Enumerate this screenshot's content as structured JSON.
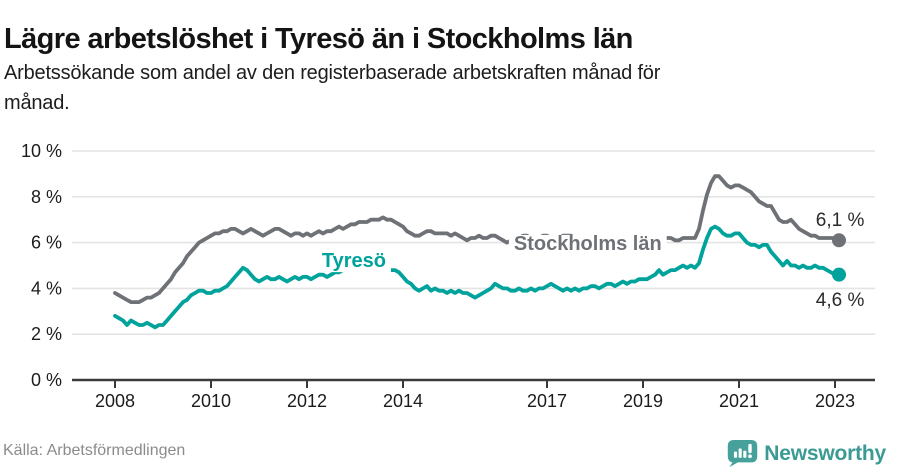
{
  "header": {
    "title": "Lägre arbetslöshet i Tyresö än i Stockholms län",
    "subtitle": "Arbetssökande som andel av den registerbaserade arbetskraften månad för månad."
  },
  "footer": {
    "source": "Källa: Arbetsförmedlingen",
    "brand": "Newsworthy",
    "brand_color": "#3b9b94",
    "brand_icon": "newsworthy-speech-bubble-bar-chart-icon",
    "brand_icon_color": "#45a19a"
  },
  "chart_data": {
    "type": "line",
    "grid": true,
    "legend_position": "inline-labels",
    "x_axis": {
      "start_year": 2008,
      "frequency": "monthly",
      "range": [
        "2008-01",
        "2023-02"
      ],
      "ticks": [
        {
          "year": 2008,
          "label": "2008"
        },
        {
          "year": 2010,
          "label": "2010"
        },
        {
          "year": 2012,
          "label": "2012"
        },
        {
          "year": 2014,
          "label": "2014"
        },
        {
          "year": 2017,
          "label": "2017"
        },
        {
          "year": 2019,
          "label": "2019"
        },
        {
          "year": 2021,
          "label": "2021"
        },
        {
          "year": 2023,
          "label": "2023"
        }
      ]
    },
    "y_axis": {
      "unit": "%",
      "min": 0,
      "max": 10,
      "ticks": [
        {
          "value": 0,
          "label": "0 %"
        },
        {
          "value": 2,
          "label": "2 %"
        },
        {
          "value": 4,
          "label": "4 %"
        },
        {
          "value": 6,
          "label": "6 %"
        },
        {
          "value": 8,
          "label": "8 %"
        },
        {
          "value": 10,
          "label": "10 %"
        }
      ]
    },
    "colors": {
      "grid": "#e4e4e4",
      "axis": "#3a3a3a",
      "tick_text": "#1c1c1c",
      "end_label_text": "#2b2b2b"
    },
    "series": [
      {
        "name": "Stockholms län",
        "color": "#6e7176",
        "inline_label": {
          "x": 2016.31,
          "y": 5.68
        },
        "end_label": {
          "text": "6,1 %",
          "x": 2022.6,
          "y": 6.72
        },
        "end_value": 6.1,
        "values": [
          3.8,
          3.7,
          3.6,
          3.5,
          3.4,
          3.4,
          3.4,
          3.5,
          3.6,
          3.6,
          3.7,
          3.8,
          4.0,
          4.2,
          4.4,
          4.7,
          4.9,
          5.1,
          5.4,
          5.6,
          5.8,
          6.0,
          6.1,
          6.2,
          6.3,
          6.4,
          6.4,
          6.5,
          6.5,
          6.6,
          6.6,
          6.5,
          6.4,
          6.5,
          6.6,
          6.5,
          6.4,
          6.3,
          6.4,
          6.5,
          6.6,
          6.6,
          6.5,
          6.4,
          6.3,
          6.4,
          6.4,
          6.3,
          6.4,
          6.3,
          6.4,
          6.5,
          6.4,
          6.5,
          6.5,
          6.6,
          6.7,
          6.6,
          6.7,
          6.8,
          6.8,
          6.9,
          6.9,
          6.9,
          7.0,
          7.0,
          7.0,
          7.1,
          7.0,
          7.0,
          6.9,
          6.8,
          6.7,
          6.5,
          6.4,
          6.3,
          6.3,
          6.4,
          6.5,
          6.5,
          6.4,
          6.4,
          6.4,
          6.4,
          6.3,
          6.4,
          6.3,
          6.2,
          6.1,
          6.2,
          6.2,
          6.3,
          6.2,
          6.2,
          6.3,
          6.3,
          6.2,
          6.1,
          6.0,
          6.1,
          6.2,
          6.2,
          6.3,
          6.3,
          6.2,
          6.2,
          6.2,
          6.3,
          6.3,
          6.2,
          6.2,
          6.2,
          6.3,
          6.3,
          6.3,
          6.2,
          6.2,
          6.2,
          6.1,
          6.1,
          6.1,
          6.0,
          6.0,
          6.0,
          6.1,
          6.1,
          6.2,
          6.1,
          6.1,
          6.0,
          6.0,
          6.1,
          6.1,
          6.1,
          6.0,
          6.1,
          6.1,
          6.2,
          6.2,
          6.2,
          6.1,
          6.1,
          6.2,
          6.2,
          6.2,
          6.2,
          6.6,
          7.4,
          8.1,
          8.6,
          8.9,
          8.9,
          8.7,
          8.5,
          8.4,
          8.5,
          8.5,
          8.4,
          8.3,
          8.2,
          8.0,
          7.8,
          7.7,
          7.6,
          7.6,
          7.3,
          7.0,
          6.9,
          6.9,
          7.0,
          6.8,
          6.6,
          6.5,
          6.4,
          6.3,
          6.3,
          6.2,
          6.2,
          6.2,
          6.2,
          6.2,
          6.1
        ]
      },
      {
        "name": "Tyresö",
        "color": "#00a39b",
        "inline_label": {
          "x": 2012.31,
          "y": 4.93
        },
        "end_label": {
          "text": "4,6 %",
          "x": 2022.6,
          "y": 3.23
        },
        "end_value": 4.6,
        "values": [
          2.8,
          2.7,
          2.6,
          2.4,
          2.6,
          2.5,
          2.4,
          2.4,
          2.5,
          2.4,
          2.3,
          2.4,
          2.4,
          2.6,
          2.8,
          3.0,
          3.2,
          3.4,
          3.5,
          3.7,
          3.8,
          3.9,
          3.9,
          3.8,
          3.8,
          3.9,
          3.9,
          4.0,
          4.1,
          4.3,
          4.5,
          4.7,
          4.9,
          4.8,
          4.6,
          4.4,
          4.3,
          4.4,
          4.5,
          4.4,
          4.4,
          4.5,
          4.4,
          4.3,
          4.4,
          4.5,
          4.4,
          4.5,
          4.5,
          4.4,
          4.5,
          4.6,
          4.6,
          4.5,
          4.6,
          4.7,
          4.7,
          4.8,
          4.8,
          4.9,
          4.9,
          5.0,
          4.9,
          4.9,
          5.0,
          4.9,
          4.9,
          4.8,
          4.9,
          4.8,
          4.8,
          4.7,
          4.5,
          4.3,
          4.2,
          4.0,
          3.9,
          4.0,
          4.1,
          3.9,
          4.0,
          3.9,
          3.9,
          3.8,
          3.9,
          3.8,
          3.9,
          3.8,
          3.8,
          3.7,
          3.6,
          3.7,
          3.8,
          3.9,
          4.0,
          4.2,
          4.1,
          4.0,
          4.0,
          3.9,
          3.9,
          4.0,
          3.9,
          3.9,
          4.0,
          3.9,
          4.0,
          4.0,
          4.1,
          4.2,
          4.1,
          4.0,
          3.9,
          4.0,
          3.9,
          4.0,
          3.9,
          4.0,
          4.0,
          4.1,
          4.1,
          4.0,
          4.1,
          4.2,
          4.2,
          4.1,
          4.2,
          4.3,
          4.2,
          4.3,
          4.3,
          4.4,
          4.4,
          4.4,
          4.5,
          4.6,
          4.8,
          4.6,
          4.7,
          4.8,
          4.8,
          4.9,
          5.0,
          4.9,
          5.0,
          4.9,
          5.1,
          5.7,
          6.2,
          6.6,
          6.7,
          6.6,
          6.4,
          6.3,
          6.3,
          6.4,
          6.4,
          6.2,
          6.0,
          5.9,
          5.9,
          5.8,
          5.9,
          5.9,
          5.6,
          5.4,
          5.2,
          5.0,
          5.2,
          5.0,
          5.0,
          4.9,
          5.0,
          4.9,
          4.9,
          5.0,
          4.9,
          4.9,
          4.8,
          4.7,
          4.6,
          4.6
        ]
      }
    ]
  }
}
